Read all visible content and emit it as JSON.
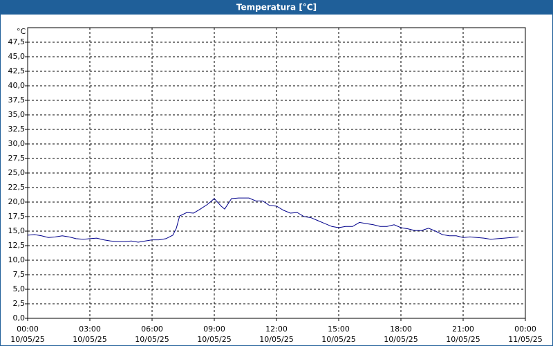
{
  "chart_data": {
    "type": "line",
    "title": "Temperatura [°C]",
    "y_label": "°C",
    "xlim": [
      0,
      24
    ],
    "ylim": [
      0,
      50
    ],
    "grid": true,
    "xticks": [
      {
        "value": 0,
        "label": "00:00\n10/05/25"
      },
      {
        "value": 3,
        "label": "03:00\n10/05/25"
      },
      {
        "value": 6,
        "label": "06:00\n10/05/25"
      },
      {
        "value": 9,
        "label": "09:00\n10/05/25"
      },
      {
        "value": 12,
        "label": "12:00\n10/05/25"
      },
      {
        "value": 15,
        "label": "15:00\n10/05/25"
      },
      {
        "value": 18,
        "label": "18:00\n10/05/25"
      },
      {
        "value": 21,
        "label": "21:00\n10/05/25"
      },
      {
        "value": 24,
        "label": "00:00\n11/05/25"
      }
    ],
    "yticks": [
      {
        "value": 0,
        "label": "0,0"
      },
      {
        "value": 2.5,
        "label": "2,5"
      },
      {
        "value": 5,
        "label": "5,0"
      },
      {
        "value": 7.5,
        "label": "7,5"
      },
      {
        "value": 10,
        "label": "10,0"
      },
      {
        "value": 12.5,
        "label": "12,5"
      },
      {
        "value": 15,
        "label": "15,0"
      },
      {
        "value": 17.5,
        "label": "17,5"
      },
      {
        "value": 20,
        "label": "20,0"
      },
      {
        "value": 22.5,
        "label": "22,5"
      },
      {
        "value": 25,
        "label": "25,0"
      },
      {
        "value": 27.5,
        "label": "27,5"
      },
      {
        "value": 30,
        "label": "30,0"
      },
      {
        "value": 32.5,
        "label": "32,5"
      },
      {
        "value": 35,
        "label": "35,0"
      },
      {
        "value": 37.5,
        "label": "37,5"
      },
      {
        "value": 40,
        "label": "40,0"
      },
      {
        "value": 42.5,
        "label": "42,5"
      },
      {
        "value": 45,
        "label": "45,0"
      },
      {
        "value": 47.5,
        "label": "47,5"
      }
    ],
    "x": [
      0,
      0.33,
      0.67,
      1,
      1.33,
      1.67,
      2,
      2.33,
      2.67,
      3,
      3.33,
      3.67,
      4,
      4.33,
      4.67,
      5,
      5.33,
      5.67,
      6,
      6.33,
      6.67,
      7,
      7.17,
      7.33,
      7.67,
      8,
      8.33,
      8.67,
      9,
      9.33,
      9.5,
      9.83,
      10.17,
      10.67,
      11,
      11.33,
      11.67,
      12,
      12.33,
      12.67,
      13,
      13.33,
      13.67,
      14,
      14.33,
      14.67,
      15,
      15.33,
      15.67,
      16,
      16.33,
      16.67,
      17,
      17.33,
      17.67,
      18,
      18.33,
      18.67,
      19,
      19.33,
      19.67,
      20,
      20.33,
      20.67,
      21,
      21.33,
      21.67,
      22,
      22.33,
      22.67,
      23,
      23.33,
      23.67
    ],
    "series": [
      {
        "color": "#00008b",
        "values": [
          14.3,
          14.4,
          14.2,
          13.9,
          14.0,
          14.2,
          14.0,
          13.7,
          13.6,
          13.7,
          13.8,
          13.5,
          13.3,
          13.2,
          13.2,
          13.3,
          13.1,
          13.3,
          13.5,
          13.5,
          13.7,
          14.3,
          15.5,
          17.6,
          18.2,
          18.1,
          18.8,
          19.6,
          20.6,
          19.3,
          18.8,
          20.6,
          20.7,
          20.7,
          20.2,
          20.2,
          19.4,
          19.3,
          18.6,
          18.1,
          18.2,
          17.5,
          17.3,
          16.8,
          16.3,
          15.8,
          15.6,
          15.8,
          15.8,
          16.5,
          16.3,
          16.1,
          15.8,
          15.8,
          16.1,
          15.6,
          15.4,
          15.1,
          15.1,
          15.5,
          15.0,
          14.4,
          14.2,
          14.2,
          13.9,
          14.0,
          13.9,
          13.8,
          13.6,
          13.7,
          13.8,
          13.9,
          14.0
        ]
      }
    ]
  }
}
